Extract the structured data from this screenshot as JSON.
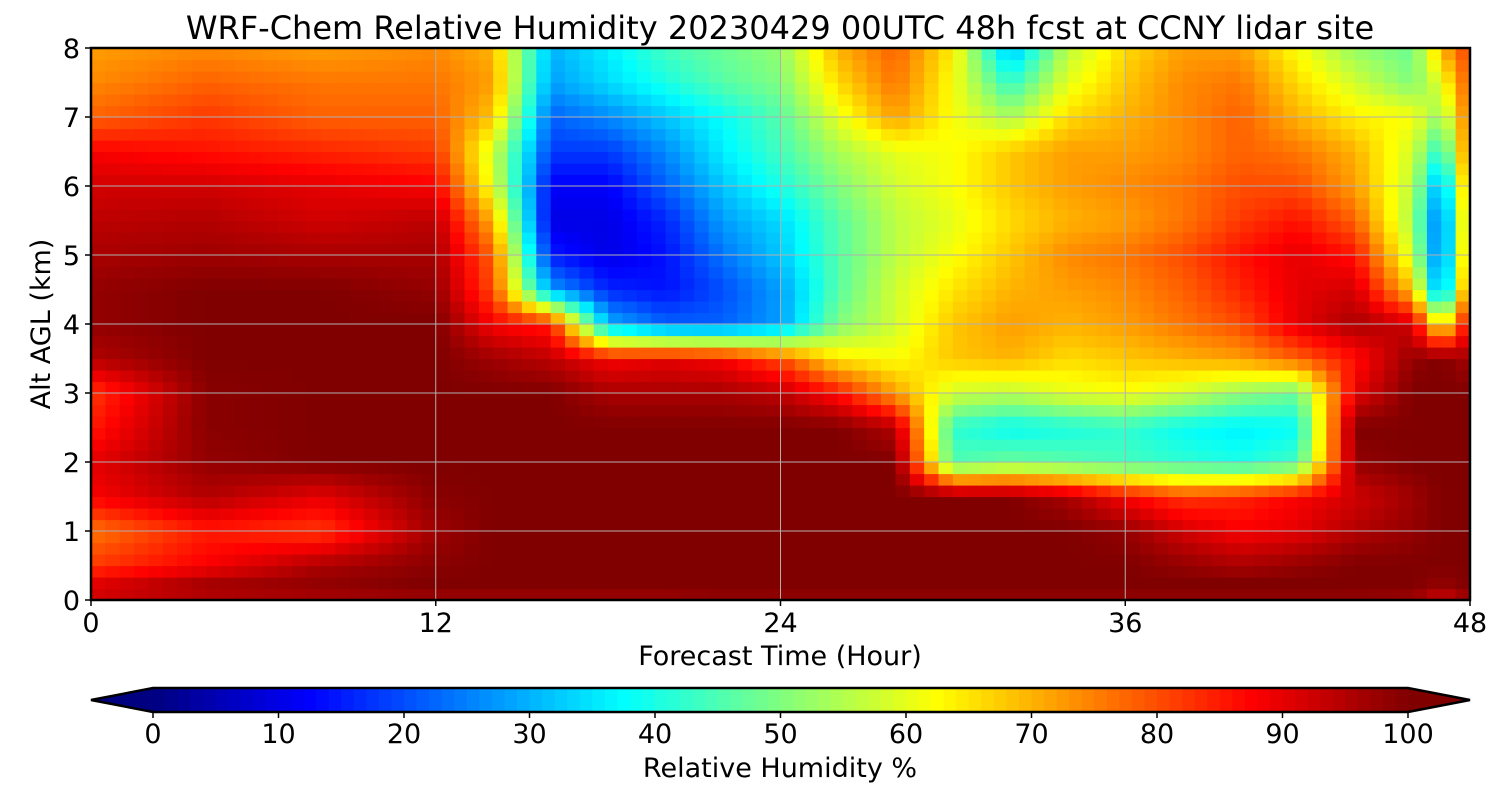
{
  "chart_data": {
    "type": "heatmap",
    "title": "WRF-Chem Relative Humidity 20230429 00UTC 48h fcst at CCNY lidar site",
    "xlabel": "Forecast Time (Hour)",
    "ylabel": "Alt AGL (km)",
    "x_range": [
      0,
      48
    ],
    "y_range": [
      0,
      8
    ],
    "x_ticks": [
      0,
      12,
      24,
      36,
      48
    ],
    "y_ticks": [
      0,
      1,
      2,
      3,
      4,
      5,
      6,
      7,
      8
    ],
    "grid": true,
    "colormap": "jet",
    "colorbar": {
      "label": "Relative Humidity %",
      "range": [
        0,
        100
      ],
      "ticks": [
        0,
        10,
        20,
        30,
        40,
        50,
        60,
        70,
        80,
        90,
        100
      ],
      "extend": "both",
      "orientation": "horizontal"
    },
    "hours": [
      0,
      4,
      8,
      12,
      14,
      16,
      18,
      20,
      22,
      24,
      26,
      28,
      30,
      32,
      34,
      36,
      38,
      40,
      42,
      44,
      46,
      47,
      48
    ],
    "altitudes_km": [
      0,
      0.25,
      0.5,
      1,
      1.5,
      2,
      2.5,
      3,
      3.5,
      4,
      4.5,
      5,
      5.5,
      6,
      6.5,
      7,
      7.5,
      8
    ],
    "values": [
      [
        92,
        95,
        96,
        97,
        97,
        97,
        97,
        97,
        98,
        98,
        98,
        98,
        98,
        98,
        98,
        98,
        98,
        98,
        98,
        98,
        97,
        92,
        97
      ],
      [
        90,
        96,
        98,
        100,
        100,
        100,
        100,
        100,
        100,
        100,
        100,
        100,
        100,
        100,
        100,
        100,
        100,
        100,
        100,
        100,
        100,
        98,
        100
      ],
      [
        82,
        88,
        96,
        99,
        100,
        100,
        100,
        100,
        100,
        100,
        100,
        100,
        100,
        100,
        100,
        100,
        98,
        96,
        98,
        100,
        100,
        100,
        100
      ],
      [
        76,
        85,
        82,
        97,
        100,
        100,
        100,
        100,
        100,
        100,
        100,
        100,
        100,
        100,
        100,
        98,
        92,
        88,
        90,
        95,
        98,
        100,
        100
      ],
      [
        88,
        95,
        90,
        99,
        100,
        100,
        100,
        100,
        100,
        100,
        100,
        100,
        100,
        100,
        96,
        88,
        82,
        84,
        88,
        92,
        97,
        100,
        100
      ],
      [
        90,
        98,
        100,
        100,
        100,
        100,
        100,
        100,
        100,
        100,
        100,
        100,
        45,
        48,
        46,
        44,
        42,
        40,
        44,
        98,
        100,
        100,
        100
      ],
      [
        85,
        99,
        100,
        100,
        100,
        100,
        100,
        100,
        100,
        100,
        100,
        95,
        42,
        38,
        40,
        42,
        38,
        36,
        38,
        100,
        100,
        100,
        100
      ],
      [
        82,
        99,
        100,
        100,
        100,
        100,
        96,
        96,
        96,
        94,
        86,
        72,
        58,
        56,
        60,
        62,
        58,
        52,
        48,
        90,
        100,
        100,
        100
      ],
      [
        95,
        100,
        100,
        100,
        97,
        94,
        88,
        90,
        88,
        80,
        65,
        62,
        68,
        70,
        66,
        68,
        70,
        72,
        78,
        86,
        98,
        100,
        96
      ],
      [
        98,
        100,
        100,
        100,
        88,
        85,
        30,
        22,
        22,
        28,
        50,
        58,
        68,
        72,
        70,
        72,
        76,
        80,
        90,
        96,
        92,
        60,
        90
      ],
      [
        98,
        100,
        100,
        98,
        80,
        28,
        16,
        14,
        20,
        28,
        46,
        58,
        65,
        70,
        72,
        74,
        78,
        84,
        90,
        92,
        68,
        24,
        80
      ],
      [
        96,
        97,
        96,
        96,
        78,
        15,
        10,
        14,
        24,
        32,
        46,
        56,
        62,
        68,
        74,
        76,
        80,
        86,
        90,
        86,
        58,
        20,
        76
      ],
      [
        94,
        95,
        92,
        94,
        70,
        10,
        10,
        16,
        28,
        34,
        46,
        56,
        60,
        66,
        70,
        72,
        76,
        82,
        86,
        78,
        54,
        20,
        74
      ],
      [
        92,
        92,
        90,
        88,
        60,
        12,
        12,
        22,
        32,
        40,
        50,
        58,
        62,
        68,
        72,
        74,
        76,
        80,
        80,
        72,
        56,
        26,
        76
      ],
      [
        88,
        86,
        84,
        82,
        58,
        18,
        18,
        26,
        36,
        44,
        54,
        60,
        62,
        68,
        72,
        72,
        74,
        78,
        76,
        70,
        58,
        40,
        78
      ],
      [
        78,
        82,
        78,
        78,
        68,
        22,
        26,
        32,
        38,
        46,
        60,
        72,
        62,
        54,
        66,
        70,
        74,
        78,
        70,
        64,
        62,
        52,
        78
      ],
      [
        74,
        78,
        76,
        76,
        72,
        28,
        34,
        40,
        46,
        50,
        66,
        76,
        62,
        42,
        60,
        68,
        74,
        76,
        66,
        58,
        50,
        60,
        80
      ],
      [
        72,
        74,
        72,
        74,
        70,
        30,
        36,
        44,
        48,
        52,
        70,
        78,
        64,
        30,
        56,
        66,
        72,
        72,
        62,
        52,
        48,
        70,
        82
      ]
    ]
  }
}
